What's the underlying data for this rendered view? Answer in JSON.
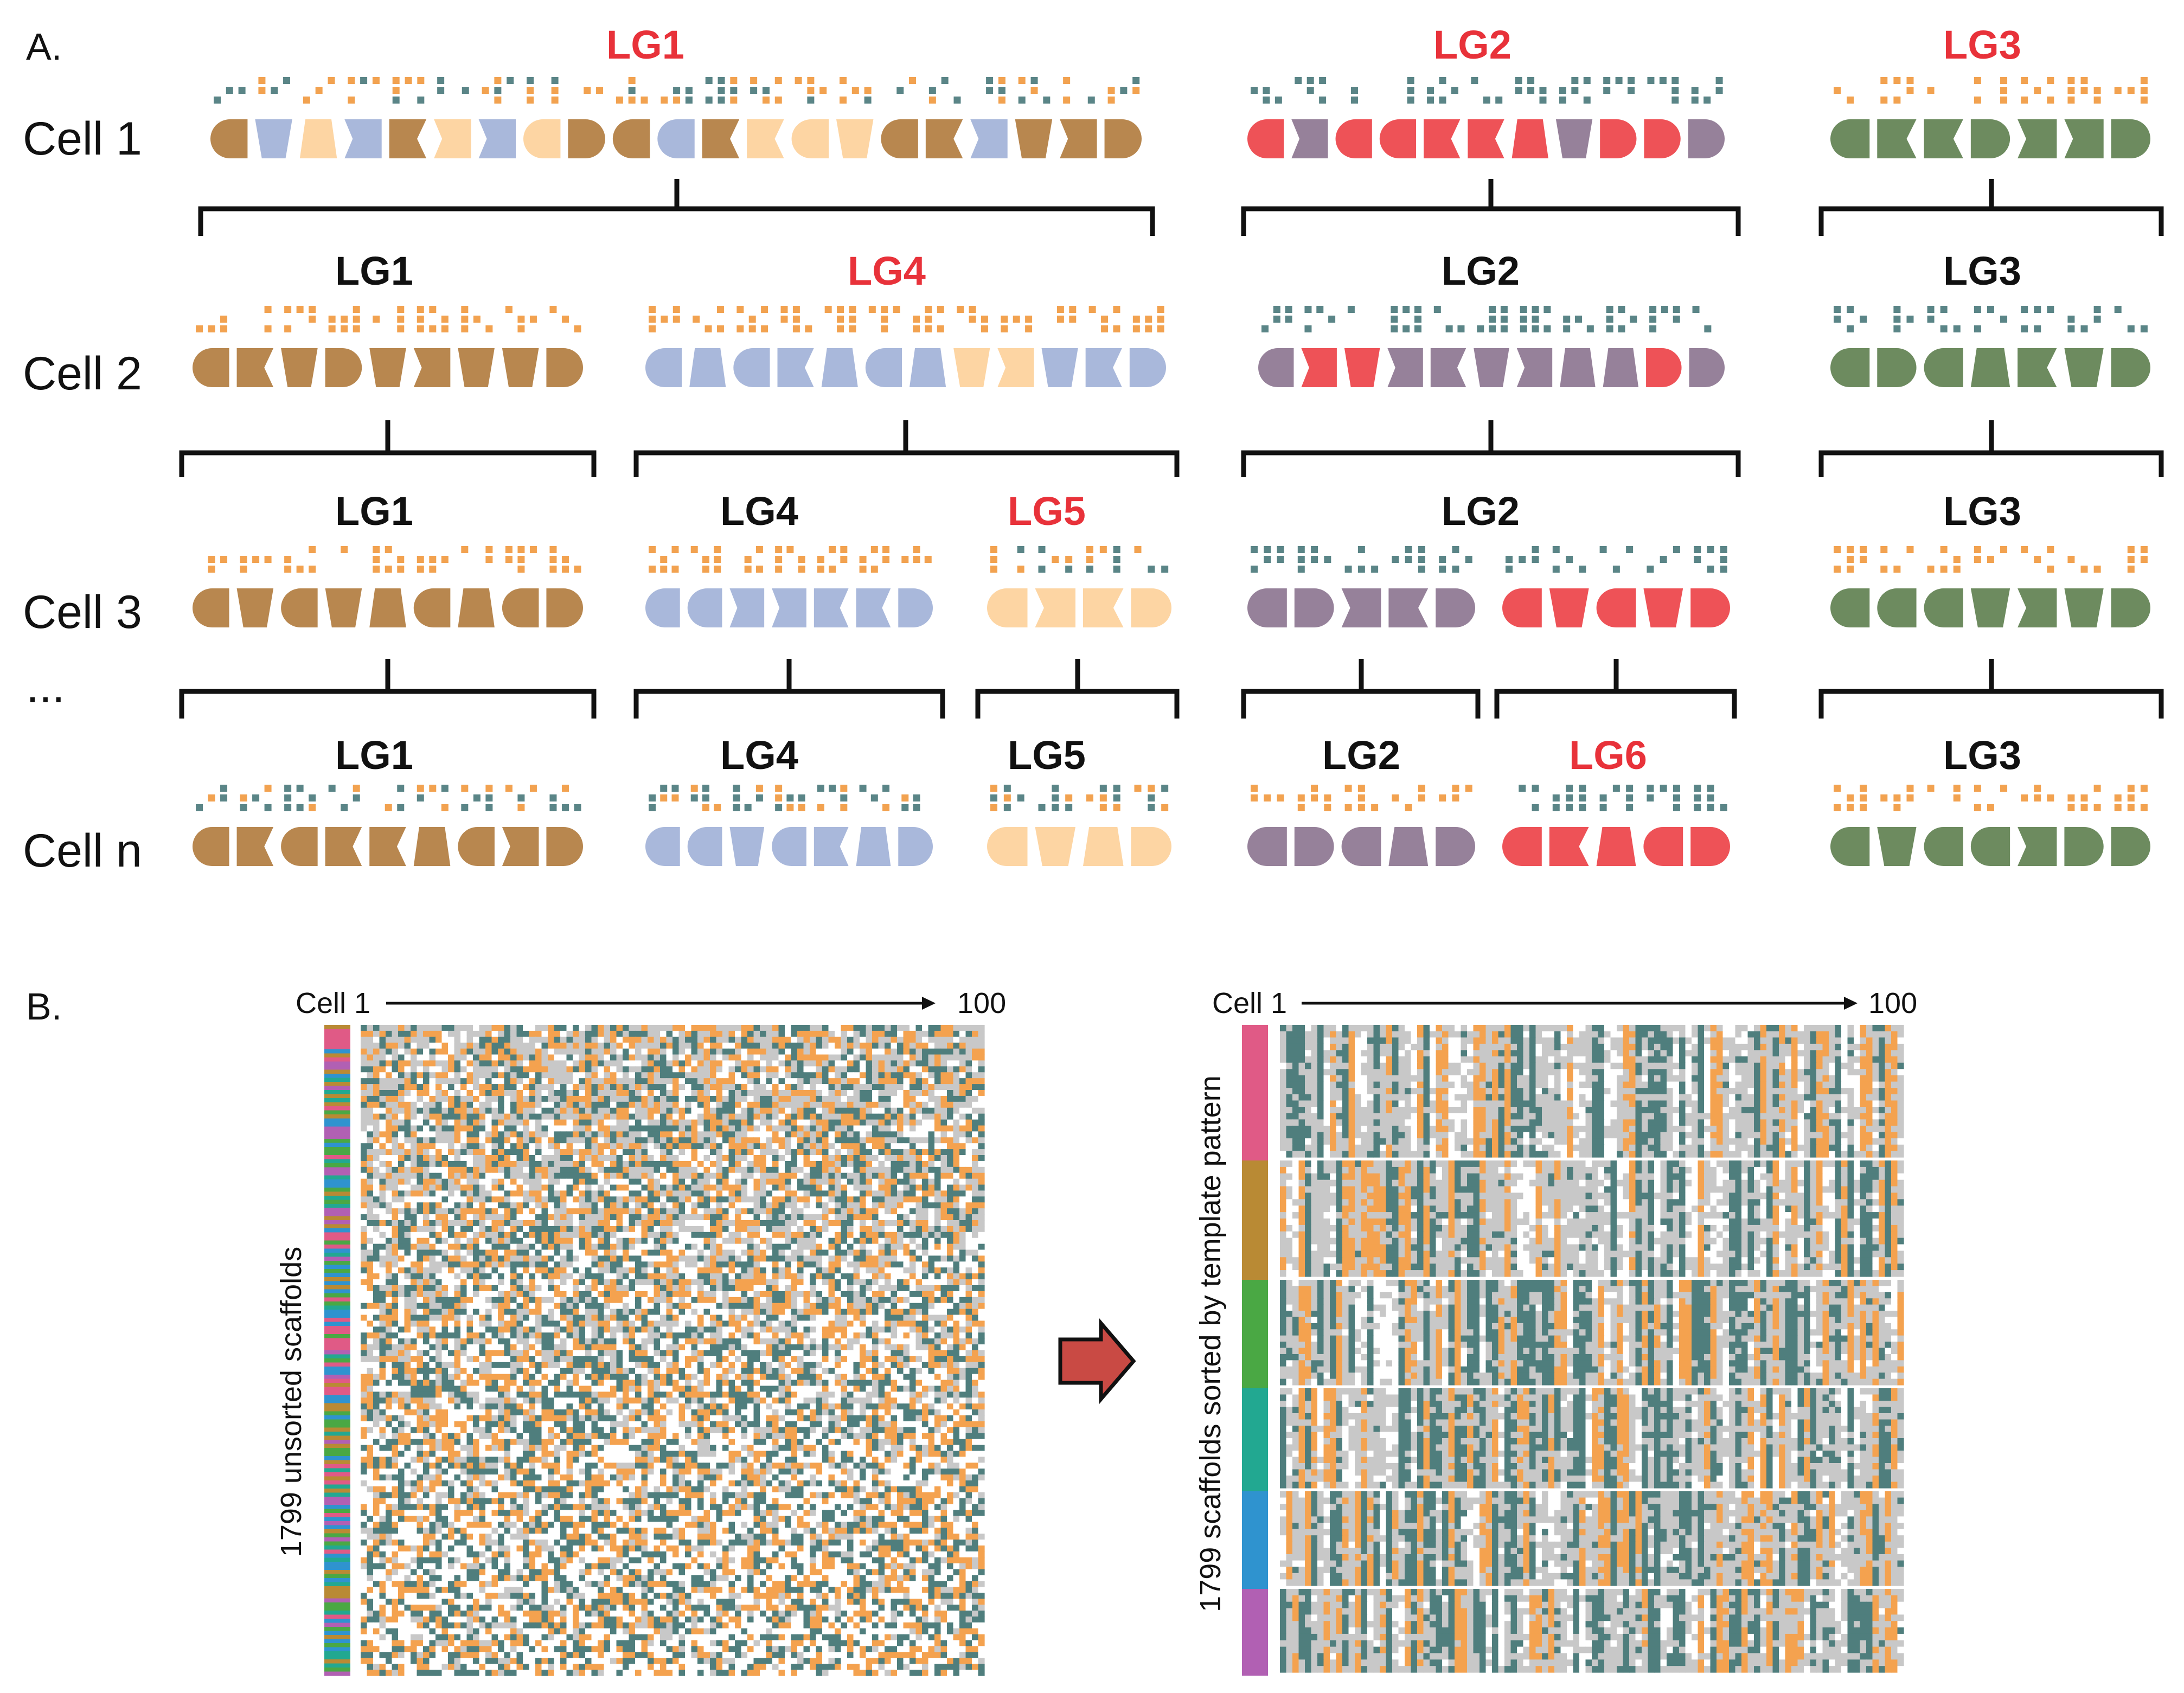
{
  "panel_a": {
    "letter": "A.",
    "cells": [
      "Cell 1",
      "Cell 2",
      "Cell 3",
      "...",
      "Cell n"
    ],
    "rows": [
      [
        {
          "label": "LG1",
          "new": true,
          "segments": [
            {
              "lg": "LG1",
              "color": "blue"
            },
            {
              "lg": "LG1",
              "color": "tan"
            },
            {
              "lg": "LG1",
              "color": "peach"
            }
          ]
        },
        {
          "label": "LG2",
          "new": true,
          "segments": [
            {
              "lg": "LG2",
              "color": "red"
            }
          ]
        },
        {
          "label": "LG3",
          "new": true,
          "segments": [
            {
              "lg": "LG3",
              "color": "green"
            }
          ]
        }
      ],
      [
        {
          "label": "LG1",
          "new": false
        },
        {
          "label": "LG4",
          "new": true
        },
        {
          "label": "LG2",
          "new": false
        },
        {
          "label": "LG3",
          "new": false
        }
      ],
      [
        {
          "label": "LG1",
          "new": false
        },
        {
          "label": "LG4",
          "new": false
        },
        {
          "label": "LG5",
          "new": true
        },
        {
          "label": "LG2",
          "new": false
        },
        {
          "label": "LG3",
          "new": false
        }
      ],
      [
        {
          "label": "LG1",
          "new": false
        },
        {
          "label": "LG4",
          "new": false
        },
        {
          "label": "LG5",
          "new": false
        },
        {
          "label": "LG2",
          "new": false
        },
        {
          "label": "LG6",
          "new": true
        },
        {
          "label": "LG3",
          "new": false
        }
      ]
    ],
    "colors": {
      "tan": "#b8874f",
      "peach": "#fdd5a3",
      "blue": "#a9b8db",
      "purple": "#96819a",
      "red": "#ee5257",
      "green": "#6d8b5f",
      "dot_orange": "#f2a250",
      "dot_teal": "#5a8587",
      "bracket": "#111111",
      "label_new": "#e8323a",
      "label_old": "#111111"
    }
  },
  "panel_b": {
    "letter": "B.",
    "left": {
      "x_start": "Cell 1",
      "x_end": "100",
      "ylabel": "1799 unsorted scaffolds"
    },
    "right": {
      "x_start": "Cell 1",
      "x_end": "100",
      "ylabel": "1799 scaffolds sorted by template pattern",
      "groups": [
        "pink",
        "ochre",
        "green",
        "teal",
        "blue",
        "violet"
      ]
    },
    "colors": {
      "orange": "#f4a24f",
      "teal": "#4f7e7d",
      "gray": "#c8c8c8",
      "white": "#ffffff",
      "arrow": "#c94a44",
      "pink": "#e05a86",
      "ochre": "#b98a34",
      "green": "#4aa844",
      "teal_group": "#22a891",
      "blue_group": "#2f93cf",
      "violet": "#b160b3"
    }
  }
}
